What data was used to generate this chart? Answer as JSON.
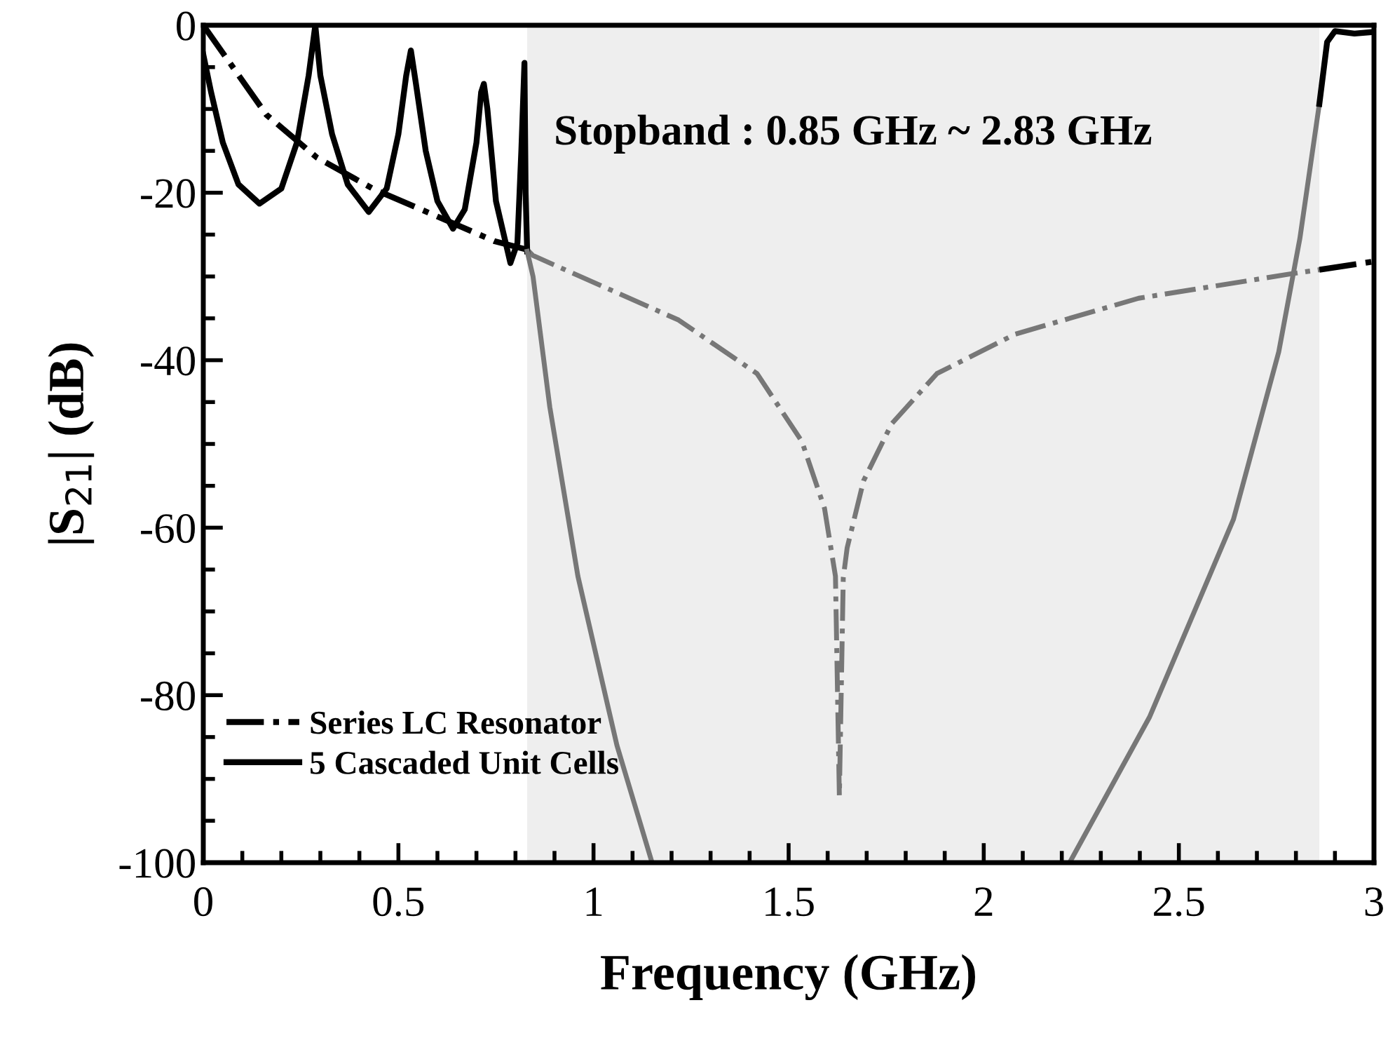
{
  "chart_data": {
    "type": "line",
    "xlabel": "Frequency (GHz)",
    "ylabel": "|S$_{21}$| (dB)",
    "xlim": [
      0,
      3
    ],
    "ylim": [
      -100,
      0
    ],
    "xticks": [
      0,
      {
        "value": 0.1,
        "label": null
      },
      {
        "value": 0.2,
        "label": null
      },
      {
        "value": 0.3,
        "label": null
      },
      {
        "value": 0.4,
        "label": null
      },
      0.5,
      {
        "value": 0.6,
        "label": null
      },
      {
        "value": 0.7,
        "label": null
      },
      {
        "value": 0.8,
        "label": null
      },
      {
        "value": 0.9,
        "label": null
      },
      1,
      {
        "value": 1.1,
        "label": null
      },
      {
        "value": 1.2,
        "label": null
      },
      {
        "value": 1.3,
        "label": null
      },
      {
        "value": 1.4,
        "label": null
      },
      1.5,
      {
        "value": 1.6,
        "label": null
      },
      {
        "value": 1.7,
        "label": null
      },
      {
        "value": 1.8,
        "label": null
      },
      {
        "value": 1.9,
        "label": null
      },
      2,
      {
        "value": 2.1,
        "label": null
      },
      {
        "value": 2.2,
        "label": null
      },
      {
        "value": 2.3,
        "label": null
      },
      {
        "value": 2.4,
        "label": null
      },
      2.5,
      {
        "value": 2.6,
        "label": null
      },
      {
        "value": 2.7,
        "label": null
      },
      {
        "value": 2.8,
        "label": null
      },
      {
        "value": 2.9,
        "label": null
      },
      3
    ],
    "yticks": [
      -100,
      {
        "value": -95,
        "label": null
      },
      {
        "value": -90,
        "label": null
      },
      {
        "value": -85,
        "label": null
      },
      -80,
      {
        "value": -75,
        "label": null
      },
      {
        "value": -70,
        "label": null
      },
      {
        "value": -65,
        "label": null
      },
      -60,
      {
        "value": -55,
        "label": null
      },
      {
        "value": -50,
        "label": null
      },
      {
        "value": -45,
        "label": null
      },
      -40,
      {
        "value": -35,
        "label": null
      },
      {
        "value": -30,
        "label": null
      },
      {
        "value": -25,
        "label": null
      },
      -20,
      {
        "value": -15,
        "label": null
      },
      {
        "value": -10,
        "label": null
      },
      {
        "value": -5,
        "label": null
      },
      0
    ],
    "grid": false,
    "legend": "bottom left",
    "marker": "none",
    "bands": [
      {
        "axis": "x",
        "from": 0.83,
        "to": 2.86,
        "color": "#eeeeee"
      }
    ],
    "annotations": [
      "Stopband : 0.85 GHz ~ 2.83 GHz"
    ],
    "series": [
      {
        "name": "Series LC Resonator",
        "color": "#000000",
        "line_style": "dashdot",
        "x": [
          0,
          0.162,
          0.291,
          0.438,
          0.593,
          0.747,
          0.83
        ],
        "values": [
          0,
          -10.7,
          -15.8,
          -19.6,
          -22.7,
          -25.8,
          -26.8
        ]
      },
      {
        "color": "#777777",
        "line_style": "dashdot",
        "x": [
          0.83,
          0.845,
          1.218,
          1.419,
          1.534,
          1.592,
          1.62,
          1.63,
          1.64,
          1.65,
          1.692,
          1.764,
          1.88,
          2.08,
          2.397,
          2.785,
          2.86
        ],
        "values": [
          -26.8,
          -27.5,
          -35.2,
          -41.6,
          -49.7,
          -57.7,
          -65.8,
          -92,
          -66,
          -62.4,
          -54.4,
          -47.6,
          -41.6,
          -36.9,
          -32.6,
          -29.7,
          -29.2
        ]
      },
      {
        "color": "#000000",
        "line_style": "dashdot",
        "x": [
          2.86,
          3.0
        ],
        "values": [
          -29.2,
          -28.2
        ]
      },
      {
        "name": "5 Cascaded Unit Cells",
        "color": "#000000",
        "line_style": "solid",
        "x": [
          0,
          0.02,
          0.05,
          0.09,
          0.144,
          0.2,
          0.24,
          0.27,
          0.287,
          0.3,
          0.33,
          0.37,
          0.424,
          0.47,
          0.5,
          0.52,
          0.532,
          0.545,
          0.57,
          0.6,
          0.64,
          0.67,
          0.7,
          0.712,
          0.719,
          0.728,
          0.75,
          0.787,
          0.805,
          0.815,
          0.823,
          0.826,
          0.83
        ],
        "values": [
          -3.5,
          -8,
          -14,
          -19,
          -21.3,
          -19.5,
          -14,
          -6,
          0,
          -6,
          -13,
          -19,
          -22.3,
          -19.5,
          -13,
          -6,
          -3,
          -7,
          -15,
          -21,
          -24.3,
          -22,
          -14,
          -8,
          -7,
          -10,
          -21,
          -28.4,
          -26,
          -15,
          -4.5,
          -20,
          -27
        ]
      },
      {
        "color": "#777777",
        "line_style": "solid",
        "x": [
          0.83,
          0.845,
          0.888,
          0.96,
          1.06,
          1.15
        ],
        "values": [
          -27,
          -30,
          -45.6,
          -65.8,
          -86,
          -100
        ]
      },
      {
        "color": "#777777",
        "line_style": "solid",
        "x": [
          2.22,
          2.425,
          2.64,
          2.756,
          2.81,
          2.86
        ],
        "values": [
          -100,
          -82.6,
          -59,
          -39,
          -25.5,
          -9.4
        ]
      },
      {
        "color": "#000000",
        "line_style": "solid",
        "x": [
          2.86,
          2.88,
          2.9,
          2.95,
          3.0
        ],
        "values": [
          -9.4,
          -2,
          -0.7,
          -1,
          -0.8
        ]
      }
    ]
  }
}
